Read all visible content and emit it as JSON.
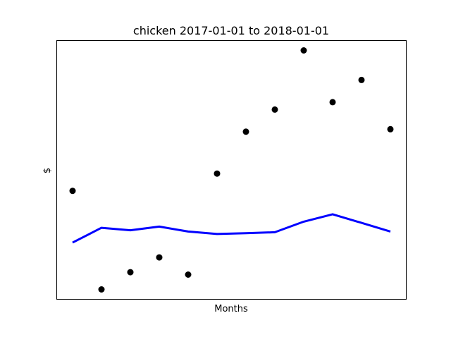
{
  "chart_data": {
    "type": "line",
    "title": "chicken 2017-01-01 to 2018-01-01",
    "xlabel": "Months",
    "ylabel": "$",
    "x_ticks_shown": false,
    "y_ticks_shown": false,
    "grid": false,
    "x": [
      1,
      2,
      3,
      4,
      5,
      6,
      7,
      8,
      9,
      10,
      11,
      12
    ],
    "xlim": [
      0.45,
      12.55
    ],
    "ylim": [
      -0.3,
      10.2
    ],
    "series": [
      {
        "kind": "scatter",
        "color": "#000000",
        "values": [
          4.1,
          0.1,
          0.8,
          1.4,
          0.7,
          4.8,
          6.5,
          7.4,
          9.8,
          7.7,
          8.6,
          6.6
        ]
      },
      {
        "kind": "line",
        "color": "#0000ff",
        "values": [
          2.0,
          2.6,
          2.5,
          2.65,
          2.45,
          2.35,
          2.38,
          2.42,
          2.85,
          3.15,
          2.8,
          2.45
        ]
      }
    ]
  }
}
